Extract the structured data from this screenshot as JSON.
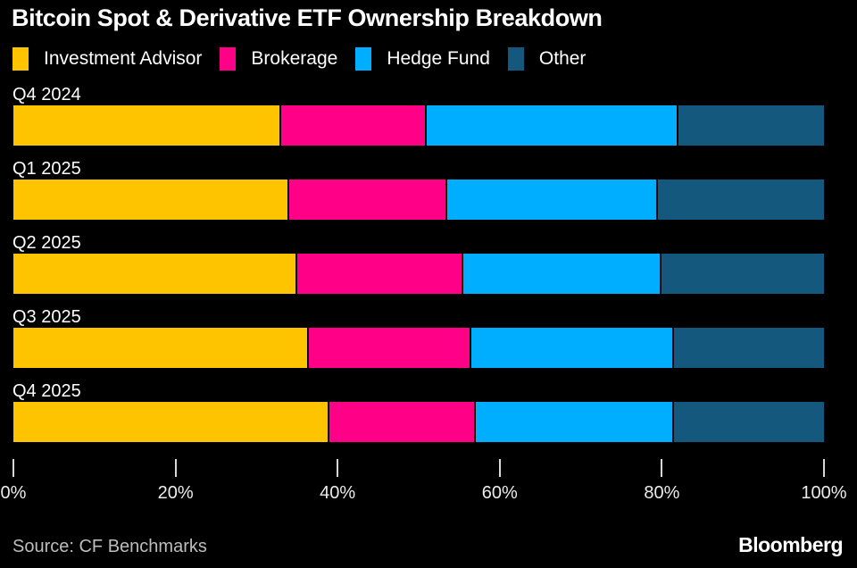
{
  "title": "Bitcoin Spot & Derivative ETF Ownership Breakdown",
  "legend": [
    {
      "label": "Investment Advisor",
      "color": "#FFC400"
    },
    {
      "label": "Brokerage",
      "color": "#FF0087"
    },
    {
      "label": "Hedge Fund",
      "color": "#00AEFF"
    },
    {
      "label": "Other",
      "color": "#14587D"
    }
  ],
  "chart_data": {
    "type": "bar",
    "orientation": "horizontal",
    "stacked": true,
    "unit": "%",
    "title": "Bitcoin Spot & Derivative ETF Ownership Breakdown",
    "categories": [
      "Q4 2024",
      "Q1 2025",
      "Q2 2025",
      "Q3 2025",
      "Q4 2025"
    ],
    "series": [
      {
        "name": "Investment Advisor",
        "color": "#FFC400",
        "values": [
          33,
          34,
          35,
          36.5,
          39
        ]
      },
      {
        "name": "Brokerage",
        "color": "#FF0087",
        "values": [
          18,
          19.5,
          20.5,
          20,
          18
        ]
      },
      {
        "name": "Hedge Fund",
        "color": "#00AEFF",
        "values": [
          31,
          26,
          24.5,
          25,
          24.5
        ]
      },
      {
        "name": "Other",
        "color": "#14587D",
        "values": [
          18,
          20.5,
          20,
          18.5,
          18.5
        ]
      }
    ],
    "xlim": [
      0,
      100
    ],
    "x_ticks": [
      "0%",
      "20%",
      "40%",
      "60%",
      "80%",
      "100%"
    ],
    "xlabel": "",
    "ylabel": "",
    "grid": false,
    "legend_position": "top"
  },
  "footer": {
    "source": "Source: CF Benchmarks",
    "brand": "Bloomberg"
  },
  "colors": {
    "background": "#000000",
    "title_text": "#FFFFFF",
    "label_text": "#FFFFFF",
    "axis_text": "#ECECEC",
    "tick_mark": "#D8D8D8",
    "source_text": "#BDBDBD"
  }
}
